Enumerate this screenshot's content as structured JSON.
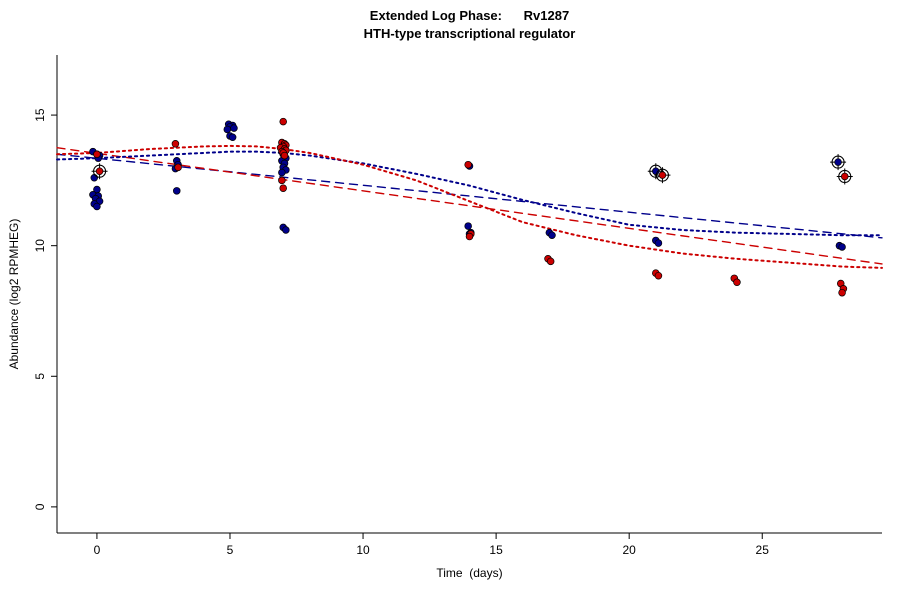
{
  "chart_data": {
    "type": "scatter",
    "title_line1": "Extended Log Phase:      Rv1287",
    "title_line2": "HTH-type transcriptional regulator",
    "xlabel": "Time  (days)",
    "ylabel": "Abundance  (log2 RPMHEG)",
    "xlim": [
      -1.5,
      29.5
    ],
    "ylim": [
      -1,
      17.3
    ],
    "xticks": [
      0,
      5,
      10,
      15,
      20,
      25
    ],
    "yticks": [
      0,
      5,
      10,
      15
    ],
    "grid": false,
    "colors": {
      "blue": "#00008B",
      "red": "#CC0000",
      "axis": "#000000",
      "flag": "#000000"
    },
    "points": {
      "blue": [
        [
          -0.15,
          13.6
        ],
        [
          0.0,
          13.5
        ],
        [
          0.1,
          13.45
        ],
        [
          0.05,
          13.35
        ],
        [
          -0.1,
          12.6
        ],
        [
          0.0,
          12.15
        ],
        [
          -0.15,
          11.95
        ],
        [
          0.05,
          11.9
        ],
        [
          -0.05,
          11.8
        ],
        [
          0.1,
          11.7
        ],
        [
          -0.1,
          11.6
        ],
        [
          0.0,
          11.5
        ],
        [
          3.0,
          13.25
        ],
        [
          3.05,
          13.1
        ],
        [
          2.95,
          12.95
        ],
        [
          3.0,
          12.1
        ],
        [
          4.95,
          14.65
        ],
        [
          5.1,
          14.6
        ],
        [
          5.0,
          14.55
        ],
        [
          5.15,
          14.5
        ],
        [
          4.9,
          14.45
        ],
        [
          5.0,
          14.2
        ],
        [
          5.1,
          14.15
        ],
        [
          7.0,
          13.5
        ],
        [
          7.1,
          13.35
        ],
        [
          6.95,
          13.25
        ],
        [
          7.05,
          13.15
        ],
        [
          7.0,
          13.0
        ],
        [
          7.1,
          12.9
        ],
        [
          6.95,
          12.8
        ],
        [
          7.0,
          10.7
        ],
        [
          7.1,
          10.6
        ],
        [
          14.0,
          13.05
        ],
        [
          13.95,
          10.75
        ],
        [
          14.05,
          10.5
        ],
        [
          14.0,
          10.45
        ],
        [
          17.0,
          10.5
        ],
        [
          17.1,
          10.4
        ],
        [
          21.0,
          10.2
        ],
        [
          21.1,
          10.1
        ],
        [
          27.9,
          10.0
        ],
        [
          28.0,
          9.95
        ]
      ],
      "red": [
        [
          0.0,
          13.5
        ],
        [
          2.95,
          13.9
        ],
        [
          3.05,
          13.0
        ],
        [
          7.0,
          14.75
        ],
        [
          6.95,
          13.95
        ],
        [
          7.05,
          13.9
        ],
        [
          7.1,
          13.85
        ],
        [
          7.0,
          13.8
        ],
        [
          6.9,
          13.75
        ],
        [
          7.05,
          13.7
        ],
        [
          7.1,
          13.65
        ],
        [
          6.95,
          13.6
        ],
        [
          7.0,
          13.55
        ],
        [
          7.05,
          13.45
        ],
        [
          6.95,
          12.5
        ],
        [
          7.0,
          12.2
        ],
        [
          13.95,
          13.1
        ],
        [
          14.05,
          10.45
        ],
        [
          14.0,
          10.35
        ],
        [
          16.95,
          9.5
        ],
        [
          17.05,
          9.4
        ],
        [
          21.0,
          8.95
        ],
        [
          21.1,
          8.85
        ],
        [
          23.95,
          8.75
        ],
        [
          24.05,
          8.6
        ],
        [
          27.95,
          8.55
        ],
        [
          28.05,
          8.35
        ],
        [
          28.0,
          8.2
        ]
      ],
      "flagged_blue": [
        [
          21.0,
          12.85
        ],
        [
          27.85,
          13.2
        ]
      ],
      "flagged_red": [
        [
          0.1,
          12.85
        ],
        [
          21.25,
          12.7
        ],
        [
          28.1,
          12.65
        ]
      ]
    },
    "lines": {
      "blue_dashed": {
        "x": [
          -1.5,
          29.5
        ],
        "y": [
          13.5,
          10.3
        ]
      },
      "red_dashed": {
        "x": [
          -1.5,
          29.5
        ],
        "y": [
          13.75,
          9.3
        ]
      },
      "blue_dotted": {
        "x": [
          -1.5,
          0,
          2,
          4,
          5,
          6,
          7,
          8,
          10,
          12,
          14,
          16,
          18,
          20,
          22,
          24,
          26,
          28,
          29.5
        ],
        "y": [
          13.3,
          13.35,
          13.45,
          13.55,
          13.6,
          13.6,
          13.55,
          13.45,
          13.15,
          12.75,
          12.3,
          11.75,
          11.25,
          10.8,
          10.6,
          10.5,
          10.45,
          10.4,
          10.4
        ]
      },
      "red_dotted": {
        "x": [
          -1.5,
          0,
          2,
          4,
          5,
          6,
          7,
          8,
          10,
          12,
          14,
          16,
          18,
          20,
          22,
          24,
          26,
          28,
          29.5
        ],
        "y": [
          13.5,
          13.55,
          13.7,
          13.8,
          13.82,
          13.8,
          13.7,
          13.55,
          13.1,
          12.5,
          11.7,
          10.9,
          10.4,
          10.0,
          9.7,
          9.5,
          9.35,
          9.2,
          9.15
        ]
      }
    }
  }
}
